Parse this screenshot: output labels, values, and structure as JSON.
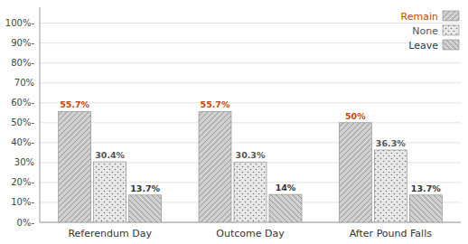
{
  "chart_data": {
    "type": "bar",
    "categories": [
      "Referendum Day",
      "Outcome Day",
      "After Pound Falls"
    ],
    "series": [
      {
        "name": "Remain",
        "color": "#d0d0d0",
        "values": [
          55.7,
          55.7,
          50.0
        ],
        "value_labels": [
          "55.7%",
          "55.7%",
          "50%"
        ]
      },
      {
        "name": "None",
        "color": "#e8e8e8",
        "values": [
          30.4,
          30.3,
          36.3
        ],
        "value_labels": [
          "30.4%",
          "30.3%",
          "36.3%"
        ]
      },
      {
        "name": "Leave",
        "color": "#d0d0d0",
        "values": [
          13.7,
          14.0,
          13.7
        ],
        "value_labels": [
          "13.7%",
          "14%",
          "13.7%"
        ]
      }
    ],
    "ylim": [
      0,
      108
    ],
    "yticks": [
      {
        "value": 0,
        "label": "0%-"
      },
      {
        "value": 10,
        "label": "10%-"
      },
      {
        "value": 20,
        "label": "20%-"
      },
      {
        "value": 30,
        "label": "30%"
      },
      {
        "value": 40,
        "label": "40%-"
      },
      {
        "value": 50,
        "label": "50%-"
      },
      {
        "value": 60,
        "label": "60%-"
      },
      {
        "value": 70,
        "label": "70%"
      },
      {
        "value": 80,
        "label": "80%-"
      },
      {
        "value": 90,
        "label": "90%-"
      },
      {
        "value": 100,
        "label": "100%-"
      }
    ],
    "grid": true,
    "legend": "upper right",
    "data_labels": true
  }
}
